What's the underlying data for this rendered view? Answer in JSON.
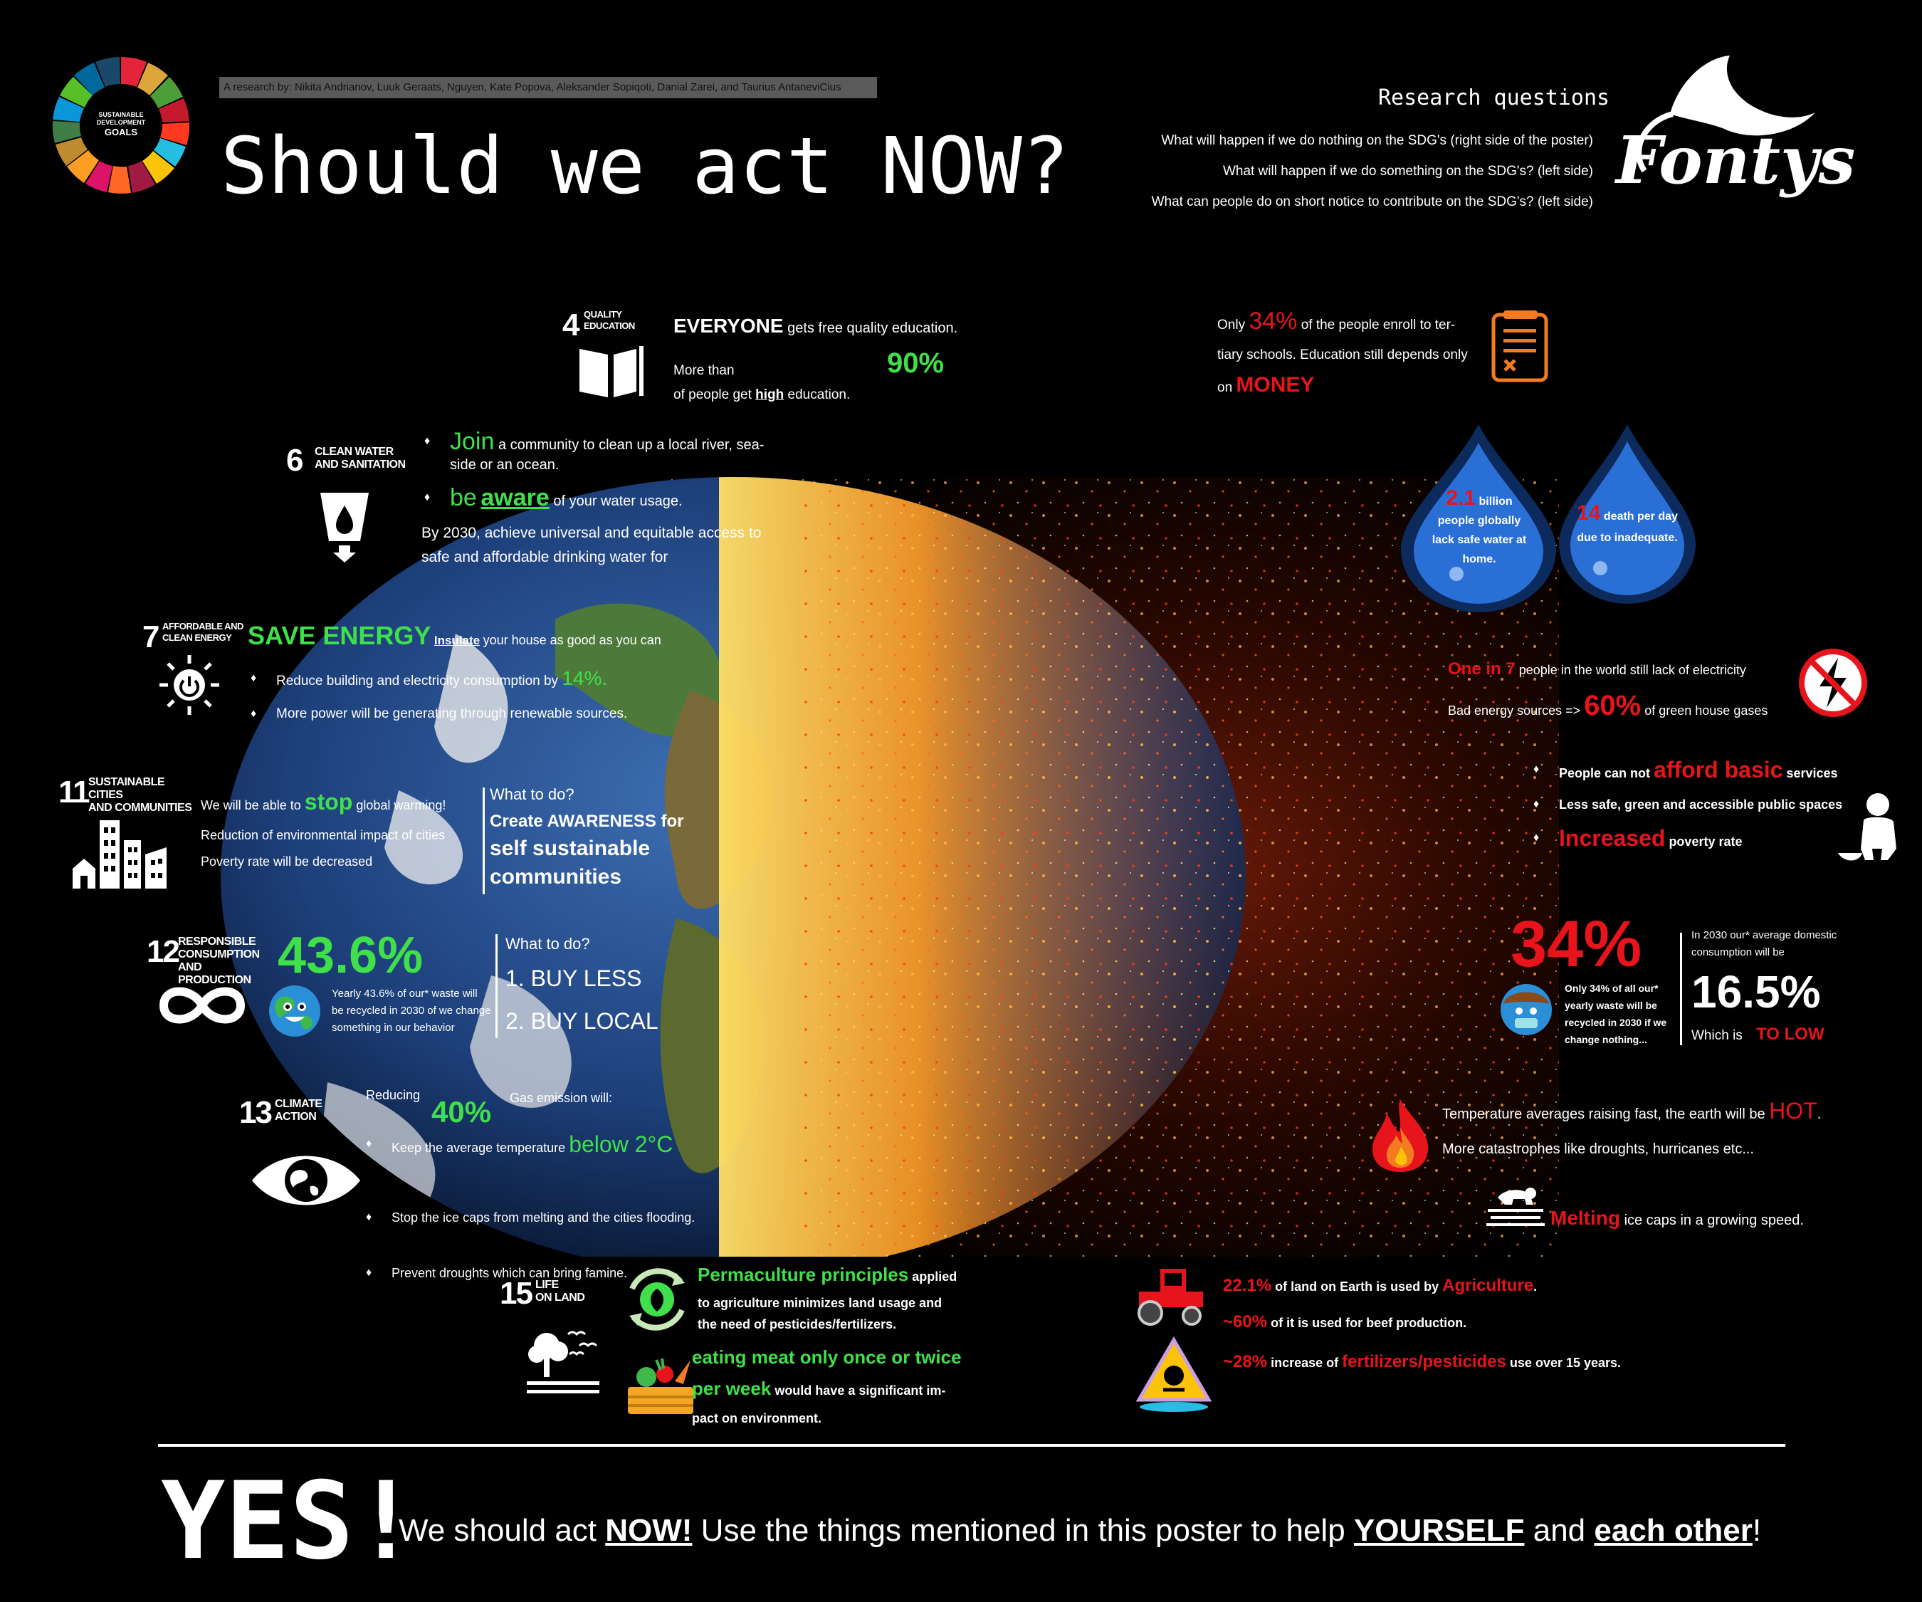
{
  "header": {
    "authors": "A research by: Nikita Andrianov, Luuk Geraats, Nguyen, Kate Popova, Aleksander Sopiqoti, Danial Zarei, and Taurius AntaneviCius",
    "title": "Should we act NOW?",
    "sdg_logo_text": [
      "SUSTAINABLE",
      "DEVELOPMENT",
      "GOALS"
    ],
    "research_title": "Research questions",
    "questions": [
      "What will happen if we do nothing on the SDG's (right side of the poster)",
      "What will happen if we do something on the SDG's? (left side)",
      "What can people do on short notice to contribute on the SDG's? (left side)"
    ],
    "brand": "Fontys"
  },
  "colors": {
    "positive": "#3fe04a",
    "negative": "#e8141c",
    "background": "#000000",
    "drop": "#2a6fd6"
  },
  "sdg4": {
    "num": "4",
    "label": [
      "QUALITY",
      "EDUCATION"
    ],
    "everyone": "EVERYONE",
    "everyone_rest": "gets free quality education.",
    "more_than": "More than",
    "pct": "90%",
    "line2_pre": "of people get",
    "line2_high": "high",
    "line2_post": "education."
  },
  "education_right": {
    "only": "Only",
    "pct": "34%",
    "rest1": "of the people enroll to ter-",
    "rest2": "tiary schools. Education still depends only",
    "on": "on",
    "money": "MONEY"
  },
  "sdg6": {
    "num": "6",
    "label": [
      "CLEAN WATER",
      "AND SANITATION"
    ],
    "join": "Join",
    "join_rest1": "a community to clean up a local river, sea-",
    "join_rest2": "side or an ocean.",
    "be": "be",
    "aware": "aware",
    "aware_rest": "of your water usage.",
    "goal1": "By 2030, achieve universal and equitable access to",
    "goal2": "safe and affordable drinking water for"
  },
  "drops": [
    {
      "num": "2.1",
      "unit": "billion",
      "lines": [
        "people globally",
        "lack safe water at",
        "home."
      ]
    },
    {
      "num": "14",
      "unit": "death per day",
      "lines": [
        "due to inadequate."
      ]
    }
  ],
  "sdg7": {
    "num": "7",
    "label": [
      "AFFORDABLE AND",
      "CLEAN ENERGY"
    ],
    "save": "SAVE ENERGY",
    "insulate": "Insulate",
    "insulate_rest": "your house as good as you can",
    "b1": "Reduce building and electricity consumption by",
    "b1_pct": "14%.",
    "b2": "More power will be generating through renewable sources."
  },
  "energy_right": {
    "one_in_7": "One in 7",
    "l1_rest": "people in the world still lack of electricity",
    "l2_pre": "Bad energy sources =>",
    "l2_pct": "60%",
    "l2_post": "of green house gases"
  },
  "sdg11": {
    "num": "11",
    "label": [
      "SUSTAINABLE CITIES",
      "AND COMMUNITIES"
    ],
    "l1_pre": "We will be able to",
    "l1_stop": "stop",
    "l1_post": "global warming!",
    "l2": "Reduction of environmental impact of cities",
    "l3": "Poverty rate will be decreased",
    "what": "What to do?",
    "a1": "Create AWARENESS for",
    "a2": "self sustainable",
    "a3": "communities"
  },
  "cities_right": {
    "b1_pre": "People can not",
    "b1_red": "afford basic",
    "b1_post": "services",
    "b2": "Less safe, green and accessible public spaces",
    "b3_red": "Increased",
    "b3_post": "poverty rate"
  },
  "sdg12": {
    "num": "12",
    "label": [
      "RESPONSIBLE",
      "CONSUMPTION",
      "AND PRODUCTION"
    ],
    "pct": "43.6%",
    "desc": [
      "Yearly 43.6% of our* waste will",
      "be recycled in 2030 of we change",
      "something in our behavior"
    ],
    "what": "What to do?",
    "a1": "1. BUY LESS",
    "a2": "2. BUY LOCAL"
  },
  "consumption_right": {
    "pct": "34%",
    "desc": [
      "Only 34% of all our*",
      "yearly waste will be",
      "recycled in 2030 if we",
      "change nothing..."
    ],
    "c1": "In 2030 our* average domestic",
    "c2": "consumption will be",
    "big": "16.5%",
    "which": "Which is",
    "low": "TO LOW"
  },
  "sdg13": {
    "num": "13",
    "label": [
      "CLIMATE",
      "ACTION"
    ],
    "reducing": "Reducing",
    "pct": "40%",
    "gas": "Gas emission will:",
    "b1_pre": "Keep the average temperature",
    "b1_g": "below 2°C",
    "b2": "Stop the ice caps from melting and the cities flooding.",
    "b3": "Prevent droughts which can bring famine."
  },
  "climate_right": {
    "l1_pre": "Temperature averages raising fast, the earth will be",
    "l1_hot": "HOT",
    "l1_dot": ".",
    "l2": "More catastrophes like droughts, hurricanes etc...",
    "l3_red": "Melting",
    "l3_post": "ice caps in a growing speed."
  },
  "sdg15": {
    "num": "15",
    "label": [
      "LIFE",
      "ON LAND"
    ],
    "p1_g": "Permaculture principles",
    "p1_rest": "applied",
    "p2": "to agriculture minimizes land usage and",
    "p3": "the need of pesticides/fertilizers.",
    "m1_g": "eating meat only once or twice",
    "m2_g": "per week",
    "m2_rest": "would have a significant im-",
    "m3": "pact on environment."
  },
  "land_right": {
    "l1_pct": "22.1%",
    "l1_mid": "of land on Earth is used by",
    "l1_red": "Agriculture",
    "l1_dot": ".",
    "l2_pct": "~60%",
    "l2_rest": "of it is used for beef production.",
    "l3_pct": "~28%",
    "l3_mid": "increase of",
    "l3_red": "fertilizers/pesticides",
    "l3_post": "use over 15 years."
  },
  "footer": {
    "yes": "YES!",
    "pre": "We should act",
    "now": "NOW!",
    "mid": "Use the things mentioned in this poster to help",
    "yourself": "YOURSELF",
    "and": "and",
    "each": "each other",
    "end": "!"
  }
}
